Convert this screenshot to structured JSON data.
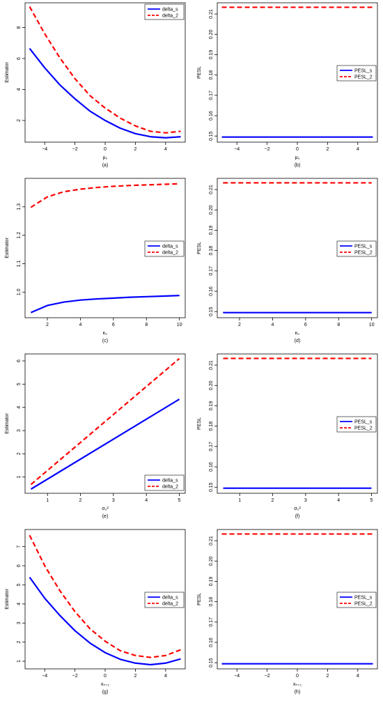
{
  "chart_data": [
    {
      "type": "line",
      "caption": "(a)",
      "xlabel": "μ₀",
      "ylabel": "Estimator",
      "xlim": [
        -5.3,
        5.3
      ],
      "ylim": [
        0.6,
        9.6
      ],
      "xticks": [
        -4,
        -2,
        0,
        2,
        4
      ],
      "xtick_labels": [
        "−4",
        "−2",
        "0",
        "2",
        "4"
      ],
      "yticks": [
        2,
        4,
        6,
        8
      ],
      "ytick_labels": [
        "2",
        "4",
        "6",
        "8"
      ],
      "legend_position": "top-right",
      "x": [
        -5,
        -4,
        -3,
        -2,
        -1,
        0,
        1,
        2,
        3,
        4,
        5
      ],
      "series": [
        {
          "name": "delta_s",
          "color": "#0000ff",
          "dash": "solid",
          "values": [
            6.65,
            5.4,
            4.3,
            3.4,
            2.6,
            2.0,
            1.5,
            1.15,
            0.95,
            0.88,
            0.95
          ]
        },
        {
          "name": "delta_2",
          "color": "#ff0000",
          "dash": "dashed",
          "values": [
            9.35,
            7.6,
            6.05,
            4.7,
            3.6,
            2.8,
            2.15,
            1.65,
            1.3,
            1.2,
            1.3
          ]
        }
      ]
    },
    {
      "type": "line",
      "caption": "(b)",
      "xlabel": "μ₀",
      "ylabel": "PESL",
      "xlim": [
        -5.3,
        5.3
      ],
      "ylim": [
        0.147,
        0.2155
      ],
      "xticks": [
        -4,
        -2,
        0,
        2,
        4
      ],
      "xtick_labels": [
        "−4",
        "−2",
        "0",
        "2",
        "4"
      ],
      "yticks": [
        0.15,
        0.16,
        0.17,
        0.18,
        0.19,
        0.2,
        0.21
      ],
      "ytick_labels": [
        "0.15",
        "0.16",
        "0.17",
        "0.18",
        "0.19",
        "0.20",
        "0.21"
      ],
      "legend_position": "right",
      "x": [
        -5,
        5
      ],
      "series": [
        {
          "name": "PESL_s",
          "color": "#0000ff",
          "dash": "solid",
          "values": [
            0.1495,
            0.1495
          ]
        },
        {
          "name": "PESL_2",
          "color": "#ff0000",
          "dash": "dashed",
          "values": [
            0.2133,
            0.2133
          ]
        }
      ]
    },
    {
      "type": "line",
      "caption": "(c)",
      "xlabel": "κ₀",
      "ylabel": "Estimator",
      "xlim": [
        0.65,
        10.35
      ],
      "ylim": [
        0.91,
        1.4
      ],
      "xticks": [
        2,
        4,
        6,
        8,
        10
      ],
      "xtick_labels": [
        "2",
        "4",
        "6",
        "8",
        "10"
      ],
      "yticks": [
        1.0,
        1.1,
        1.2,
        1.3
      ],
      "ytick_labels": [
        "1.0",
        "1.1",
        "1.2",
        "1.3"
      ],
      "legend_position": "right",
      "x": [
        1,
        2,
        3,
        4,
        5,
        6,
        7,
        8,
        9,
        10
      ],
      "series": [
        {
          "name": "delta_s",
          "color": "#0000ff",
          "dash": "solid",
          "values": [
            0.928,
            0.953,
            0.965,
            0.972,
            0.976,
            0.979,
            0.982,
            0.984,
            0.986,
            0.988
          ]
        },
        {
          "name": "delta_2",
          "color": "#ff0000",
          "dash": "dashed",
          "values": [
            1.298,
            1.335,
            1.353,
            1.362,
            1.368,
            1.372,
            1.375,
            1.377,
            1.379,
            1.381
          ]
        }
      ]
    },
    {
      "type": "line",
      "caption": "(d)",
      "xlabel": "κ₀",
      "ylabel": "PESL",
      "xlim": [
        0.65,
        10.35
      ],
      "ylim": [
        0.147,
        0.2155
      ],
      "xticks": [
        2,
        4,
        6,
        8,
        10
      ],
      "xtick_labels": [
        "2",
        "4",
        "6",
        "8",
        "10"
      ],
      "yticks": [
        0.15,
        0.16,
        0.17,
        0.18,
        0.19,
        0.2,
        0.21
      ],
      "ytick_labels": [
        "0.15",
        "0.16",
        "0.17",
        "0.18",
        "0.19",
        "0.20",
        "0.21"
      ],
      "legend_position": "right",
      "x": [
        1,
        10
      ],
      "series": [
        {
          "name": "PESL_s",
          "color": "#0000ff",
          "dash": "solid",
          "values": [
            0.1495,
            0.1495
          ]
        },
        {
          "name": "PESL_2",
          "color": "#ff0000",
          "dash": "dashed",
          "values": [
            0.2133,
            0.2133
          ]
        }
      ]
    },
    {
      "type": "line",
      "caption": "(e)",
      "xlabel": "σ₀²",
      "ylabel": "Estimator",
      "xlim": [
        0.32,
        5.18
      ],
      "ylim": [
        0.3,
        6.3
      ],
      "xticks": [
        1,
        2,
        3,
        4,
        5
      ],
      "xtick_labels": [
        "1",
        "2",
        "3",
        "4",
        "5"
      ],
      "yticks": [
        1,
        2,
        3,
        4,
        5,
        6
      ],
      "ytick_labels": [
        "1",
        "2",
        "3",
        "4",
        "5",
        "6"
      ],
      "legend_position": "bottom-right",
      "x": [
        0.5,
        5
      ],
      "series": [
        {
          "name": "delta_s",
          "color": "#0000ff",
          "dash": "solid",
          "values": [
            0.48,
            4.35
          ]
        },
        {
          "name": "delta_2",
          "color": "#ff0000",
          "dash": "dashed",
          "values": [
            0.68,
            6.1
          ]
        }
      ]
    },
    {
      "type": "line",
      "caption": "(f)",
      "xlabel": "σ₀²",
      "ylabel": "PESL",
      "xlim": [
        0.32,
        5.18
      ],
      "ylim": [
        0.147,
        0.2155
      ],
      "xticks": [
        1,
        2,
        3,
        4,
        5
      ],
      "xtick_labels": [
        "1",
        "2",
        "3",
        "4",
        "5"
      ],
      "yticks": [
        0.15,
        0.16,
        0.17,
        0.18,
        0.19,
        0.2,
        0.21
      ],
      "ytick_labels": [
        "0.15",
        "0.16",
        "0.17",
        "0.18",
        "0.19",
        "0.20",
        "0.21"
      ],
      "legend_position": "right",
      "x": [
        0.5,
        5
      ],
      "series": [
        {
          "name": "PESL_s",
          "color": "#0000ff",
          "dash": "solid",
          "values": [
            0.1495,
            0.1495
          ]
        },
        {
          "name": "PESL_2",
          "color": "#ff0000",
          "dash": "dashed",
          "values": [
            0.2133,
            0.2133
          ]
        }
      ]
    },
    {
      "type": "line",
      "caption": "(g)",
      "xlabel": "xₙ₊₁",
      "ylabel": "Estimator",
      "xlim": [
        -5.3,
        5.3
      ],
      "ylim": [
        0.6,
        7.9
      ],
      "xticks": [
        -4,
        -2,
        0,
        2,
        4
      ],
      "xtick_labels": [
        "−4",
        "−2",
        "0",
        "2",
        "4"
      ],
      "yticks": [
        1,
        2,
        3,
        4,
        5,
        6,
        7
      ],
      "ytick_labels": [
        "1",
        "2",
        "3",
        "4",
        "5",
        "6",
        "7"
      ],
      "legend_position": "right",
      "x": [
        -5,
        -4,
        -3,
        -2,
        -1,
        0,
        1,
        2,
        3,
        4,
        5
      ],
      "series": [
        {
          "name": "delta_s",
          "color": "#0000ff",
          "dash": "solid",
          "values": [
            5.4,
            4.3,
            3.4,
            2.6,
            1.95,
            1.45,
            1.1,
            0.9,
            0.82,
            0.9,
            1.12
          ]
        },
        {
          "name": "delta_2",
          "color": "#ff0000",
          "dash": "dashed",
          "values": [
            7.6,
            6.0,
            4.7,
            3.6,
            2.7,
            2.05,
            1.55,
            1.3,
            1.2,
            1.3,
            1.6
          ]
        }
      ]
    },
    {
      "type": "line",
      "caption": "(h)",
      "xlabel": "xₙ₊₁",
      "ylabel": "PESL",
      "xlim": [
        -5.3,
        5.3
      ],
      "ylim": [
        0.147,
        0.2155
      ],
      "xticks": [
        -4,
        -2,
        0,
        2,
        4
      ],
      "xtick_labels": [
        "−4",
        "−2",
        "0",
        "2",
        "4"
      ],
      "yticks": [
        0.15,
        0.16,
        0.17,
        0.18,
        0.19,
        0.2,
        0.21
      ],
      "ytick_labels": [
        "0.15",
        "0.16",
        "0.17",
        "0.18",
        "0.19",
        "0.20",
        "0.21"
      ],
      "legend_position": "right",
      "x": [
        -5,
        5
      ],
      "series": [
        {
          "name": "PESL_s",
          "color": "#0000ff",
          "dash": "solid",
          "values": [
            0.1495,
            0.1495
          ]
        },
        {
          "name": "PESL_2",
          "color": "#ff0000",
          "dash": "dashed",
          "values": [
            0.2133,
            0.2133
          ]
        }
      ]
    }
  ]
}
